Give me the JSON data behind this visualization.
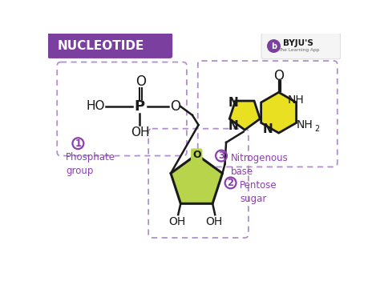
{
  "title": "NUCLEOTIDE",
  "title_bg": "#7b3fa0",
  "title_text_color": "#ffffff",
  "bg_color": "#ffffff",
  "label1": "Phosphate\ngroup",
  "label2": "Pentose\nsugar",
  "label3": "Nitrogenous\nbase",
  "label_color": "#8b3fb0",
  "bond_color": "#1a1a1a",
  "dashed_color": "#b090cc",
  "sugar_fill": "#b8d44a",
  "base_fill": "#e8e020",
  "byju_bg": "#f5f5f5"
}
